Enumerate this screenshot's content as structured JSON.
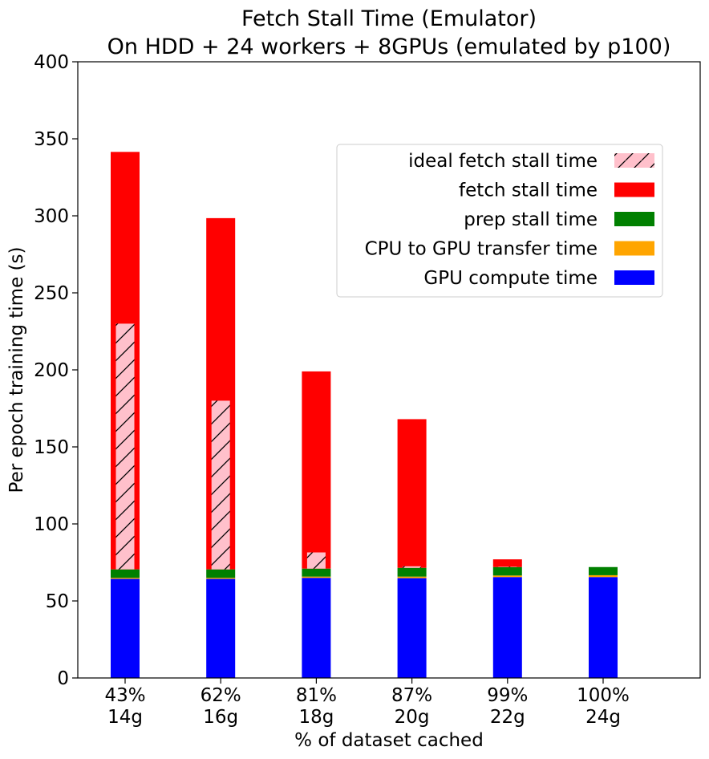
{
  "chart_data": {
    "type": "bar",
    "title": "Fetch Stall Time (Emulator)",
    "subtitle": "On HDD + 24 workers + 8GPUs (emulated by p100)",
    "xlabel": "% of dataset cached",
    "ylabel": "Per epoch training time (s)",
    "ylim": [
      0,
      400
    ],
    "yticks": [
      "0",
      "50",
      "100",
      "150",
      "200",
      "250",
      "300",
      "350",
      "400"
    ],
    "categories": [
      {
        "pct": "43%",
        "size": "14g"
      },
      {
        "pct": "62%",
        "size": "16g"
      },
      {
        "pct": "81%",
        "size": "18g"
      },
      {
        "pct": "87%",
        "size": "20g"
      },
      {
        "pct": "99%",
        "size": "22g"
      },
      {
        "pct": "100%",
        "size": "24g"
      }
    ],
    "stacked_series": [
      {
        "name": "GPU compute time",
        "color": "#0000ff",
        "values": [
          64.3,
          64.3,
          65.0,
          64.8,
          65.5,
          65.5
        ]
      },
      {
        "name": "CPU to GPU transfer time",
        "color": "#ffa500",
        "values": [
          0.7,
          0.7,
          0.8,
          1.0,
          1.0,
          1.2
        ]
      },
      {
        "name": "prep stall time",
        "color": "#008000",
        "values": [
          5.5,
          5.5,
          5.2,
          5.7,
          5.5,
          5.3
        ]
      },
      {
        "name": "fetch stall time",
        "color": "#ff0000",
        "values": [
          271.0,
          228.0,
          128.0,
          96.5,
          5.0,
          0
        ]
      }
    ],
    "ideal_series": {
      "name": "ideal fetch stall time",
      "color": "#ffc0cb",
      "hatch": "/",
      "values": [
        159.5,
        109.5,
        10.5,
        1.0,
        0.2,
        0
      ]
    },
    "legend": {
      "placement": "upper-right",
      "entries": [
        "ideal fetch stall time",
        "fetch stall time",
        "prep stall time",
        "CPU to GPU transfer time",
        "GPU compute time"
      ]
    },
    "grid": false
  }
}
